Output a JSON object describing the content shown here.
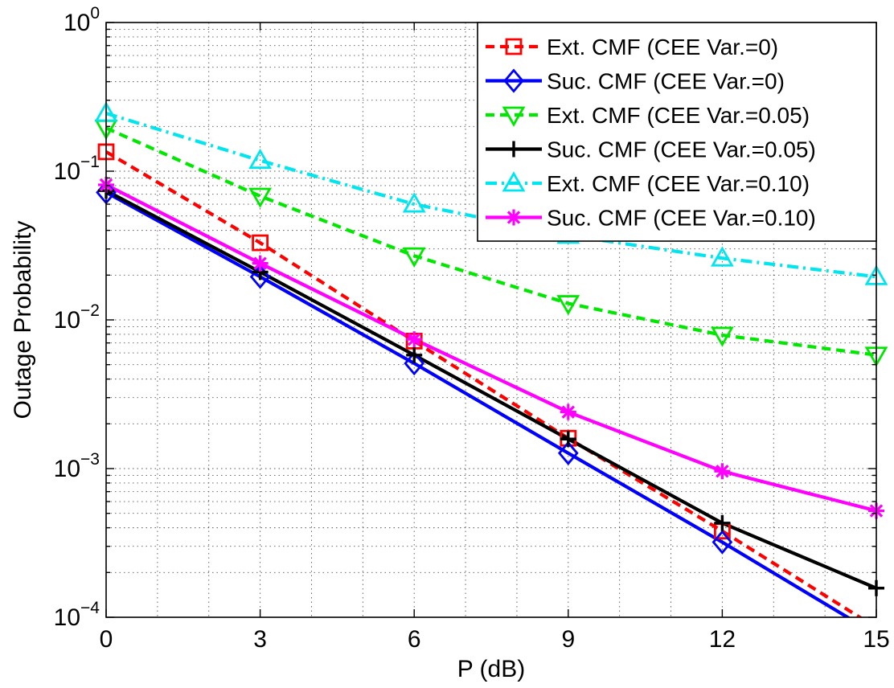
{
  "chart_data": {
    "type": "line",
    "title": "",
    "xlabel": "P (dB)",
    "ylabel": "Outage Probability",
    "x": [
      0,
      3,
      6,
      9,
      12,
      15
    ],
    "xlim": [
      0,
      15
    ],
    "ylim": [
      0.0001,
      1
    ],
    "yscale": "log",
    "grid": true,
    "legend_position": "top-right",
    "x_tick_labels": [
      "0",
      "3",
      "6",
      "9",
      "12",
      "15"
    ],
    "y_tick_labels": [
      {
        "base": "10",
        "exp": "0"
      },
      {
        "base": "10",
        "exp": "−1"
      },
      {
        "base": "10",
        "exp": "−2"
      },
      {
        "base": "10",
        "exp": "−3"
      },
      {
        "base": "10",
        "exp": "−4"
      }
    ],
    "series": [
      {
        "name": "Ext. CMF (CEE Var.=0)",
        "color": "#ff0000",
        "line_style": "dashed",
        "marker": "square",
        "x": [
          0,
          3,
          6,
          9,
          12,
          15
        ],
        "values": [
          0.135,
          0.033,
          0.0072,
          0.0016,
          0.00038,
          8.51e-05
        ]
      },
      {
        "name": "Suc. CMF (CEE Var.=0)",
        "color": "#0000ff",
        "line_style": "solid",
        "marker": "diamond",
        "x": [
          0,
          3,
          6,
          9,
          12,
          15
        ],
        "values": [
          0.072,
          0.0195,
          0.0051,
          0.00127,
          0.00032,
          7.66e-05
        ]
      },
      {
        "name": "Ext. CMF (CEE Var.=0.05)",
        "color": "#00e800",
        "line_style": "dashed",
        "marker": "triangle-down",
        "x": [
          0,
          3,
          6,
          9,
          12,
          15
        ],
        "values": [
          0.195,
          0.068,
          0.027,
          0.0129,
          0.0079,
          0.0058
        ]
      },
      {
        "name": "Suc. CMF (CEE Var.=0.05)",
        "color": "#000000",
        "line_style": "solid",
        "marker": "plus",
        "x": [
          0,
          3,
          6,
          9,
          12,
          15
        ],
        "values": [
          0.074,
          0.021,
          0.0058,
          0.00158,
          0.00043,
          0.000157
        ]
      },
      {
        "name": "Ext. CMF (CEE Var.=0.10)",
        "color": "#00e5ee",
        "line_style": "dash-dot",
        "marker": "triangle-up",
        "x": [
          0,
          3,
          6,
          9,
          12,
          15
        ],
        "values": [
          0.245,
          0.118,
          0.06,
          0.037,
          0.026,
          0.0195
        ]
      },
      {
        "name": "Suc. CMF (CEE Var.=0.10)",
        "color": "#ff00ff",
        "line_style": "solid",
        "marker": "asterisk",
        "x": [
          0,
          3,
          6,
          9,
          12,
          15
        ],
        "values": [
          0.081,
          0.024,
          0.0074,
          0.0024,
          0.00096,
          0.00052
        ]
      }
    ]
  }
}
